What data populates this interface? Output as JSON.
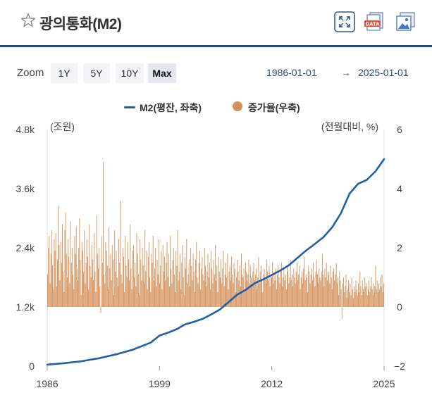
{
  "header": {
    "title": "광의통화(M2)",
    "icons": [
      "star-icon",
      "fullscreen-icon",
      "data-download-icon",
      "image-download-icon"
    ]
  },
  "zoom": {
    "label": "Zoom",
    "buttons": [
      "1Y",
      "5Y",
      "10Y",
      "Max"
    ],
    "active": "Max"
  },
  "range": {
    "from": "1986-01-01",
    "arrow": "→",
    "to": "2025-01-01"
  },
  "legend": {
    "m2": "M2(평잔, 좌축)",
    "growth": "증가율(우축)"
  },
  "colors": {
    "line": "#1f5fa8",
    "bar": "#d4905a",
    "header_rule": "#1f4e79"
  },
  "chart_data": {
    "type": "line+bar",
    "left_unit_label": "(조원)",
    "right_unit_label": "(전월대비, %)",
    "left_ticks": [
      "4.8k",
      "3.6k",
      "2.4k",
      "1.2k",
      "0"
    ],
    "right_ticks": [
      "6",
      "4",
      "2",
      "0",
      "−2"
    ],
    "x_ticks": [
      "1986",
      "1999",
      "2012",
      "2025"
    ],
    "xlim": [
      1986,
      2025
    ],
    "ylim_left": [
      0,
      4800
    ],
    "ylim_right": [
      -2,
      6
    ],
    "series": [
      {
        "name": "M2(평잔, 좌축)",
        "type": "line",
        "axis": "left",
        "x": [
          1986,
          1988,
          1990,
          1992,
          1994,
          1996,
          1998,
          1999,
          2000,
          2001,
          2002,
          2003,
          2004,
          2005,
          2006,
          2007,
          2008,
          2009,
          2010,
          2011,
          2012,
          2013,
          2014,
          2015,
          2016,
          2017,
          2018,
          2019,
          2020,
          2021,
          2022,
          2023,
          2024,
          2025
        ],
        "values": [
          30,
          60,
          100,
          160,
          240,
          340,
          480,
          620,
          680,
          750,
          850,
          900,
          960,
          1050,
          1150,
          1300,
          1450,
          1550,
          1680,
          1760,
          1850,
          1940,
          2050,
          2200,
          2350,
          2480,
          2620,
          2820,
          3100,
          3500,
          3700,
          3780,
          3950,
          4200
        ]
      },
      {
        "name": "증가율(우축)",
        "type": "bar",
        "axis": "right",
        "x_start": 1986,
        "x_end": 2025,
        "step": "monthly",
        "values": [
          1.1,
          2.0,
          2.4,
          0.8,
          1.8,
          2.6,
          1.4,
          0.6,
          2.3,
          1.9,
          2.5,
          0.7,
          1.6,
          3.4,
          2.1,
          0.9,
          2.2,
          1.5,
          2.8,
          1.2,
          0.5,
          2.6,
          3.2,
          1.8,
          1.0,
          2.3,
          1.7,
          0.8,
          2.9,
          1.5,
          2.0,
          1.1,
          0.6,
          2.4,
          1.8,
          2.7,
          1.3,
          0.9,
          2.0,
          3.0,
          1.6,
          0.4,
          2.2,
          1.9,
          1.2,
          2.6,
          0.8,
          1.5,
          2.3,
          1.7,
          0.6,
          2.8,
          1.4,
          1.0,
          2.1,
          1.6,
          0.9,
          2.5,
          1.2,
          0.5,
          3.1,
          1.8,
          1.3,
          2.0,
          0.7,
          -0.2,
          2.4,
          1.5,
          4.9,
          1.1,
          0.8,
          2.2,
          1.9,
          1.4,
          0.6,
          2.7,
          1.3,
          1.8,
          0.9,
          2.1,
          1.6,
          0.4,
          2.6,
          1.2,
          1.9,
          1.0,
          0.7,
          2.3,
          1.5,
          3.6,
          1.1,
          0.8,
          2.0,
          1.7,
          0.5,
          2.4,
          1.4,
          1.0,
          2.2,
          1.6,
          0.9,
          2.8,
          1.3,
          0.6,
          1.9,
          2.1,
          1.0,
          1.5,
          0.7,
          2.5,
          1.8,
          1.1,
          0.4,
          2.3,
          1.6,
          0.9,
          2.0,
          1.4,
          0.8,
          2.6,
          1.2,
          1.9,
          0.6,
          1.7,
          2.2,
          1.0,
          0.5,
          1.8,
          1.5,
          2.4,
          0.9,
          1.3,
          2.0,
          0.7,
          1.6,
          1.1,
          2.3,
          0.8,
          1.4,
          1.9,
          0.6,
          2.1,
          1.2,
          1.7,
          0.9,
          1.5,
          2.2,
          1.0,
          1.8,
          0.7,
          2.4,
          1.3,
          0.8,
          1.6,
          2.0,
          1.1,
          0.5,
          1.9,
          1.4,
          2.6,
          0.9,
          1.2,
          1.8,
          0.6,
          1.5,
          2.1,
          1.0,
          0.4,
          1.7,
          1.3,
          2.3,
          0.8,
          1.1,
          1.6,
          0.7,
          2.0,
          1.4,
          0.9,
          1.8,
          1.2,
          0.5,
          1.6,
          2.2,
          1.0,
          0.8,
          1.5,
          1.9,
          0.6,
          1.3,
          1.7,
          1.1,
          0.9,
          2.0,
          1.4,
          0.7,
          1.2,
          1.8,
          1.0,
          1.5,
          0.6,
          1.9,
          1.3,
          0.8,
          1.6,
          1.1,
          2.1,
          0.9,
          1.4,
          0.5,
          1.7,
          1.2,
          1.0,
          1.6,
          0.8,
          1.3,
          1.9,
          0.7,
          1.1,
          1.5,
          1.0,
          1.8,
          0.6,
          1.2,
          1.4,
          0.9,
          1.7,
          1.1,
          0.8,
          1.5,
          1.3,
          0.5,
          1.0,
          1.6,
          1.2,
          0.9,
          1.4,
          0.7,
          1.8,
          1.1,
          1.0,
          1.3,
          0.6,
          1.5,
          1.2,
          0.9,
          1.1,
          1.6,
          0.8,
          1.4,
          1.0,
          0.7,
          1.2,
          1.5,
          0.9,
          1.1,
          1.3,
          0.6,
          1.0,
          1.7,
          0.8,
          1.2,
          1.4,
          0.9,
          0.5,
          1.1,
          1.3,
          1.0,
          0.8,
          1.6,
          1.2,
          0.9,
          1.4,
          0.7,
          1.1,
          1.0,
          1.5,
          0.8,
          1.2,
          0.9,
          1.3,
          0.6,
          1.1,
          1.4,
          1.0,
          0.8,
          1.2,
          1.5,
          0.7,
          1.0,
          1.3,
          0.9,
          1.1,
          0.6,
          1.4,
          1.2,
          0.8,
          1.0,
          1.6,
          0.9,
          1.1,
          0.7,
          1.3,
          1.0,
          0.8,
          1.2,
          1.5,
          0.9,
          1.1,
          1.4,
          0.6,
          1.0,
          1.2,
          0.8,
          1.3,
          1.7,
          0.9,
          1.1,
          1.0,
          0.5,
          1.4,
          1.2,
          0.8,
          1.1,
          1.3,
          0.9,
          1.5,
          1.0,
          0.7,
          1.2,
          1.6,
          1.1,
          0.8,
          1.3,
          1.0,
          0.9,
          1.2,
          1.8,
          1.1,
          0.7,
          1.3,
          1.0,
          1.5,
          0.9,
          1.2,
          1.1,
          0.8,
          1.4,
          1.0,
          0.6,
          1.2,
          1.3,
          0.9,
          1.1,
          1.5,
          0.8,
          1.0,
          0.4,
          1.2,
          0.9,
          0.6,
          -0.4,
          0.8,
          1.0,
          0.5,
          0.7,
          1.1,
          0.3,
          0.6,
          0.9,
          0.5,
          0.8,
          0.4,
          1.0,
          0.6,
          0.3,
          0.7,
          0.5,
          0.9,
          0.6,
          0.4,
          0.8,
          0.5,
          1.2,
          0.7,
          0.4,
          0.9,
          0.6,
          0.5,
          1.0,
          0.7,
          0.8,
          0.4,
          0.6,
          0.9,
          0.5,
          0.7,
          1.0,
          0.6,
          0.8,
          0.4,
          0.7,
          1.4,
          0.6,
          0.9,
          0.5,
          0.8,
          0.6,
          1.0,
          0.7,
          1.1,
          0.5,
          0.8
        ]
      }
    ]
  }
}
